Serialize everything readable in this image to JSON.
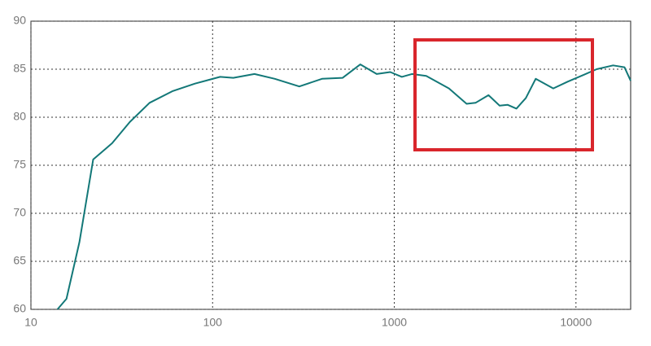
{
  "chart_data": {
    "type": "line",
    "xscale": "log",
    "grid": true,
    "x": [
      14,
      15.7,
      18.5,
      22,
      28,
      35,
      45,
      60,
      80,
      110,
      130,
      170,
      220,
      300,
      400,
      520,
      650,
      800,
      950,
      1100,
      1250,
      1500,
      2000,
      2500,
      2800,
      3300,
      3800,
      4200,
      4700,
      5300,
      6000,
      7500,
      9000,
      11000,
      13000,
      16000,
      18500,
      20000
    ],
    "series": [
      {
        "color": "#137878",
        "values": [
          60,
          61.1,
          67,
          75.6,
          77.3,
          79.5,
          81.5,
          82.7,
          83.5,
          84.2,
          84.1,
          84.5,
          84,
          83.2,
          84,
          84.1,
          85.5,
          84.5,
          84.7,
          84.2,
          84.5,
          84.3,
          83,
          81.4,
          81.5,
          82.3,
          81.2,
          81.3,
          80.9,
          82,
          84,
          83,
          83.7,
          84.4,
          85,
          85.4,
          85.2,
          83.8
        ]
      }
    ],
    "xlim": [
      10,
      20000
    ],
    "xticks": [
      10,
      100,
      1000,
      10000
    ],
    "ylim": [
      60,
      90
    ],
    "yticks": [
      60,
      65,
      70,
      75,
      80,
      85,
      90
    ]
  }
}
